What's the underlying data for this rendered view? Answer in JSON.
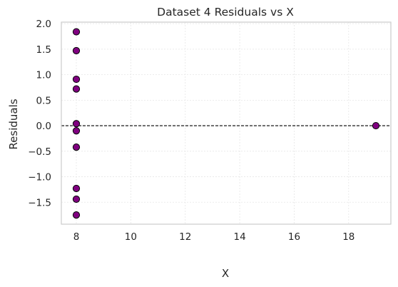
{
  "chart_data": {
    "type": "scatter",
    "title": "Dataset 4 Residuals vs X",
    "xlabel": "X",
    "ylabel": "Residuals",
    "xlim": [
      7.45,
      19.55
    ],
    "ylim": [
      -1.93,
      2.03
    ],
    "xticks": [
      8,
      10,
      12,
      14,
      16,
      18
    ],
    "yticks": [
      -1.5,
      -1.0,
      -0.5,
      0.0,
      0.5,
      1.0,
      1.5,
      2.0
    ],
    "xtick_labels": [
      "8",
      "10",
      "12",
      "14",
      "16",
      "18"
    ],
    "ytick_labels": [
      "−1.5",
      "−1.0",
      "−0.5",
      "0.0",
      "0.5",
      "1.0",
      "1.5",
      "2.0"
    ],
    "grid": true,
    "reference_line": {
      "y": 0.0,
      "style": "dashed",
      "color": "#000000"
    },
    "marker_color": "#800080",
    "marker_edge_color": "#000000",
    "points": [
      {
        "x": 8,
        "y": 1.84
      },
      {
        "x": 8,
        "y": 1.47
      },
      {
        "x": 8,
        "y": 0.91
      },
      {
        "x": 8,
        "y": 0.72
      },
      {
        "x": 8,
        "y": 0.04
      },
      {
        "x": 8,
        "y": -0.1
      },
      {
        "x": 8,
        "y": -0.42
      },
      {
        "x": 8,
        "y": -1.23
      },
      {
        "x": 8,
        "y": -1.44
      },
      {
        "x": 8,
        "y": -1.75
      },
      {
        "x": 19,
        "y": 0.0
      }
    ]
  }
}
